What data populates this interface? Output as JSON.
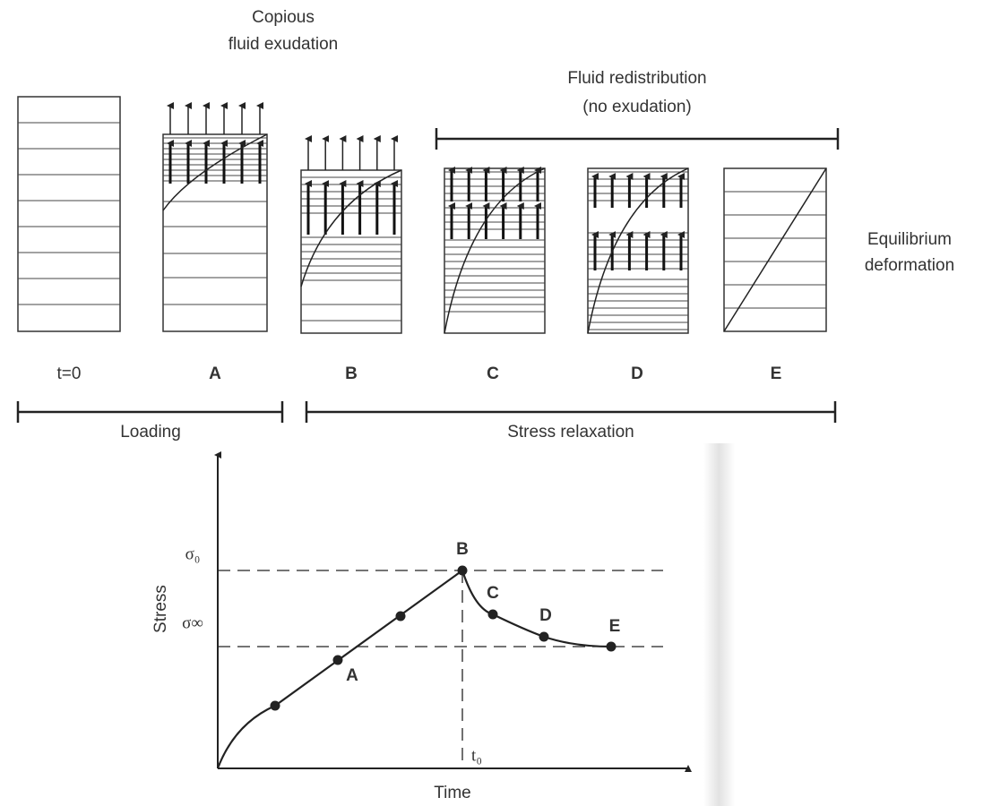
{
  "header": {
    "exudation": [
      "Copious",
      "fluid exudation"
    ],
    "redistribution": [
      "Fluid redistribution",
      "(no exudation)"
    ],
    "equilibrium": [
      "Equilibrium",
      "deformation"
    ]
  },
  "panels": [
    "t=0",
    "A",
    "B",
    "C",
    "D",
    "E"
  ],
  "phases": [
    "Loading",
    "Stress relaxation"
  ],
  "graph": {
    "y_axis": "Stress",
    "x_axis": "Time",
    "levels": [
      "σ₀",
      "σ∞"
    ],
    "time_mark": "t₀",
    "points": [
      "A",
      "B",
      "C",
      "D",
      "E"
    ]
  }
}
